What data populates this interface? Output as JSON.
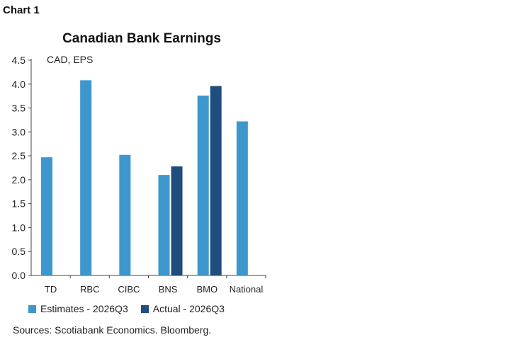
{
  "chart_label": "Chart 1",
  "chart_data": {
    "type": "bar",
    "title": "Canadian Bank Earnings",
    "ylabel": "CAD, EPS",
    "xlabel": "",
    "categories": [
      "TD",
      "RBC",
      "CIBC",
      "BNS",
      "BMO",
      "National"
    ],
    "ylim": [
      0,
      4.5
    ],
    "yticks": [
      "0.0",
      "0.5",
      "1.0",
      "1.5",
      "2.0",
      "2.5",
      "3.0",
      "3.5",
      "4.0",
      "4.5"
    ],
    "grid": false,
    "legend_position": "bottom",
    "series": [
      {
        "name": "Estimates - 2026Q3",
        "color": "#3d97cc",
        "values": [
          2.47,
          4.08,
          2.52,
          2.1,
          3.76,
          3.22
        ]
      },
      {
        "name": "Actual - 2026Q3",
        "color": "#1f4e7e",
        "values": [
          null,
          null,
          null,
          2.28,
          3.96,
          null
        ]
      }
    ]
  },
  "source": "Sources: Scotiabank Economics. Bloomberg."
}
